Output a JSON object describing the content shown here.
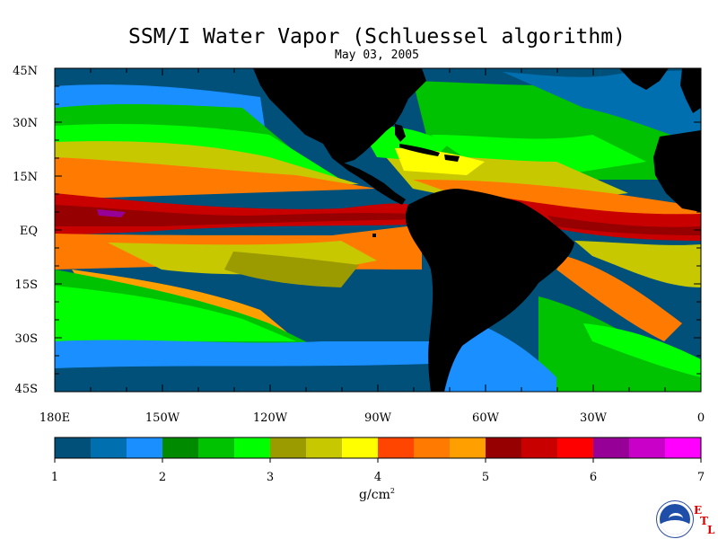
{
  "title": "SSM/I Water Vapor (Schluessel algorithm)",
  "date": "May 03, 2005",
  "latitude_labels": [
    "45N",
    "30N",
    "15N",
    "EQ",
    "15S",
    "30S",
    "45S"
  ],
  "longitude_labels": [
    "180E",
    "150W",
    "120W",
    "90W",
    "60W",
    "30W",
    "0"
  ],
  "colorbar": {
    "tick_labels": [
      "1",
      "2",
      "3",
      "4",
      "5",
      "6",
      "7"
    ],
    "unit": "g/cm",
    "unit_exponent": "2",
    "colors": [
      "#00507a",
      "#006fb0",
      "#1a8fff",
      "#008a00",
      "#00c200",
      "#00ff00",
      "#9b9b00",
      "#c8c800",
      "#ffff00",
      "#ff4500",
      "#ff7a00",
      "#ffa000",
      "#960000",
      "#c80000",
      "#ff0000",
      "#960096",
      "#c800c8",
      "#ff00ff"
    ]
  },
  "logo": {
    "text": "NOAA",
    "letters": [
      "E",
      "T",
      "L"
    ]
  },
  "chart_data": {
    "type": "heatmap",
    "title": "SSM/I Water Vapor (Schluessel algorithm)",
    "subtitle": "May 03, 2005",
    "xlabel": "",
    "ylabel": "",
    "x_range": [
      -180,
      0
    ],
    "y_range": [
      -45,
      45
    ],
    "x_ticks": [
      "180E",
      "150W",
      "120W",
      "90W",
      "60W",
      "30W",
      "0"
    ],
    "y_ticks": [
      "45N",
      "30N",
      "15N",
      "EQ",
      "15S",
      "30S",
      "45S"
    ],
    "colorbar_range": [
      1,
      7
    ],
    "colorbar_unit": "g/cm²",
    "colorbar_ticks": [
      1,
      2,
      3,
      4,
      5,
      6,
      7
    ]
  }
}
